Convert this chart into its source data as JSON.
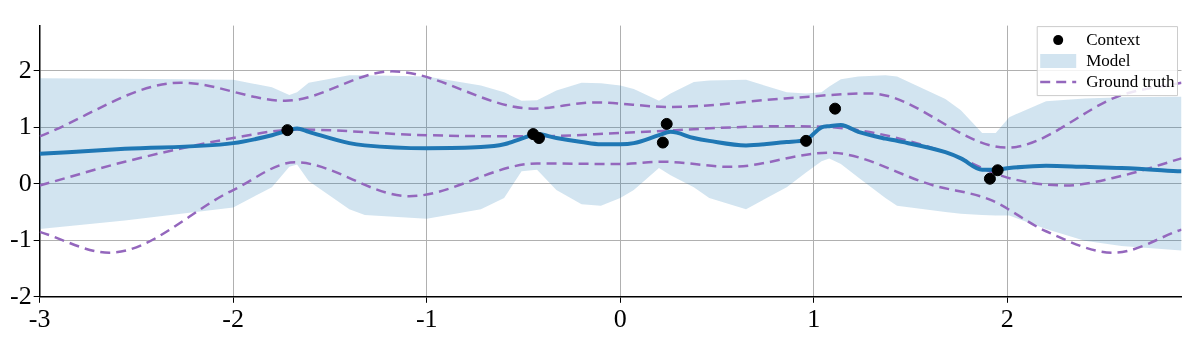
{
  "chart_data": {
    "type": "line",
    "xlim": [
      -3,
      2.9
    ],
    "ylim": [
      -2,
      2.8
    ],
    "xticks": [
      -3,
      -2,
      -1,
      0,
      1,
      2
    ],
    "yticks": [
      -2,
      -1,
      0,
      1,
      2
    ],
    "grid": true,
    "legend": "top right",
    "series": [
      {
        "name": "Context",
        "type": "scatter",
        "color": "#000000",
        "marker": "circle",
        "x": [
          -1.72,
          -0.45,
          -0.42,
          0.22,
          0.24,
          0.96,
          1.11,
          1.91,
          1.95
        ],
        "values": [
          0.95,
          0.88,
          0.81,
          0.73,
          1.06,
          0.76,
          1.33,
          0.09,
          0.24
        ]
      },
      {
        "name": "Model",
        "color": "#1f77b4",
        "marker": "none",
        "line_style": "solid",
        "x": [
          -3,
          -2.56,
          -2,
          -1.8,
          -1.71,
          -1.67,
          -1.61,
          -1.4,
          -1.32,
          -1,
          -0.72,
          -0.6,
          -0.51,
          -0.43,
          -0.33,
          -0.2,
          -0.1,
          0,
          0.07,
          0.2,
          0.26,
          0.38,
          0.46,
          0.65,
          0.86,
          0.96,
          1.04,
          1.08,
          1.14,
          1.23,
          1.37,
          1.43,
          1.68,
          1.76,
          1.87,
          1.94,
          2.01,
          2.2,
          2.4,
          2.59,
          2.9
        ],
        "values": [
          0.53,
          0.62,
          0.72,
          0.86,
          0.95,
          0.98,
          0.92,
          0.72,
          0.68,
          0.63,
          0.65,
          0.7,
          0.8,
          0.88,
          0.81,
          0.74,
          0.7,
          0.7,
          0.72,
          0.86,
          0.92,
          0.81,
          0.76,
          0.68,
          0.74,
          0.78,
          1.0,
          1.02,
          1.04,
          0.92,
          0.8,
          0.76,
          0.56,
          0.45,
          0.25,
          0.25,
          0.28,
          0.32,
          0.3,
          0.28,
          0.22
        ],
        "upper": [
          1.87,
          1.86,
          1.84,
          1.71,
          1.57,
          1.62,
          1.79,
          1.92,
          1.92,
          1.9,
          1.74,
          1.62,
          1.47,
          1.48,
          1.65,
          1.79,
          1.78,
          1.74,
          1.68,
          1.47,
          1.6,
          1.8,
          1.83,
          1.84,
          1.62,
          1.6,
          1.62,
          1.72,
          1.85,
          1.9,
          1.92,
          1.9,
          1.5,
          1.3,
          0.9,
          0.9,
          1.18,
          1.46,
          1.51,
          1.53,
          1.54
        ],
        "lower": [
          -0.8,
          -0.65,
          -0.42,
          -0.06,
          0.3,
          0.34,
          0.05,
          -0.45,
          -0.55,
          -0.62,
          -0.45,
          -0.25,
          0.22,
          0.25,
          -0.11,
          -0.36,
          -0.39,
          -0.25,
          -0.11,
          0.28,
          0.15,
          -0.06,
          -0.25,
          -0.45,
          -0.06,
          0.2,
          0.4,
          0.45,
          0.35,
          0.11,
          -0.25,
          -0.39,
          -0.5,
          -0.53,
          -0.55,
          -0.56,
          -0.56,
          -0.8,
          -1.01,
          -1.1,
          -1.18
        ]
      },
      {
        "name": "Ground truth",
        "color": "#9467bd",
        "marker": "none",
        "line_style": "dashed",
        "x": [
          -3,
          -2.56,
          -2,
          -1.67,
          -1,
          -0.43,
          0,
          0.85,
          1.23,
          1.68,
          2,
          2.3,
          2.59,
          2.9
        ],
        "values": [
          -0.03,
          0.39,
          0.81,
          0.96,
          0.86,
          0.84,
          0.9,
          1.02,
          0.95,
          0.56,
          0.11,
          -0.03,
          0.14,
          0.45
        ]
      },
      {
        "color": "#9467bd",
        "marker": "none",
        "line_style": "dashed",
        "x": [
          -3,
          -2.27,
          -1.73,
          -1.18,
          -0.45,
          -0.13,
          0.26,
          0.85,
          1.29,
          2,
          2.59,
          2.9
        ],
        "values": [
          0.84,
          1.79,
          1.47,
          1.99,
          1.33,
          1.44,
          1.36,
          1.51,
          1.6,
          0.64,
          1.57,
          1.79
        ]
      },
      {
        "color": "#9467bd",
        "marker": "none",
        "line_style": "dashed",
        "x": [
          -3,
          -2.64,
          -2,
          -1.68,
          -1.09,
          -0.43,
          0,
          0.22,
          0.57,
          1.08,
          1.62,
          1.91,
          2.2,
          2.55,
          2.9
        ],
        "values": [
          -0.85,
          -1.22,
          -0.11,
          0.38,
          -0.22,
          0.36,
          0.35,
          0.39,
          0.3,
          0.55,
          -0.03,
          -0.28,
          -0.84,
          -1.22,
          -0.81
        ]
      }
    ]
  }
}
